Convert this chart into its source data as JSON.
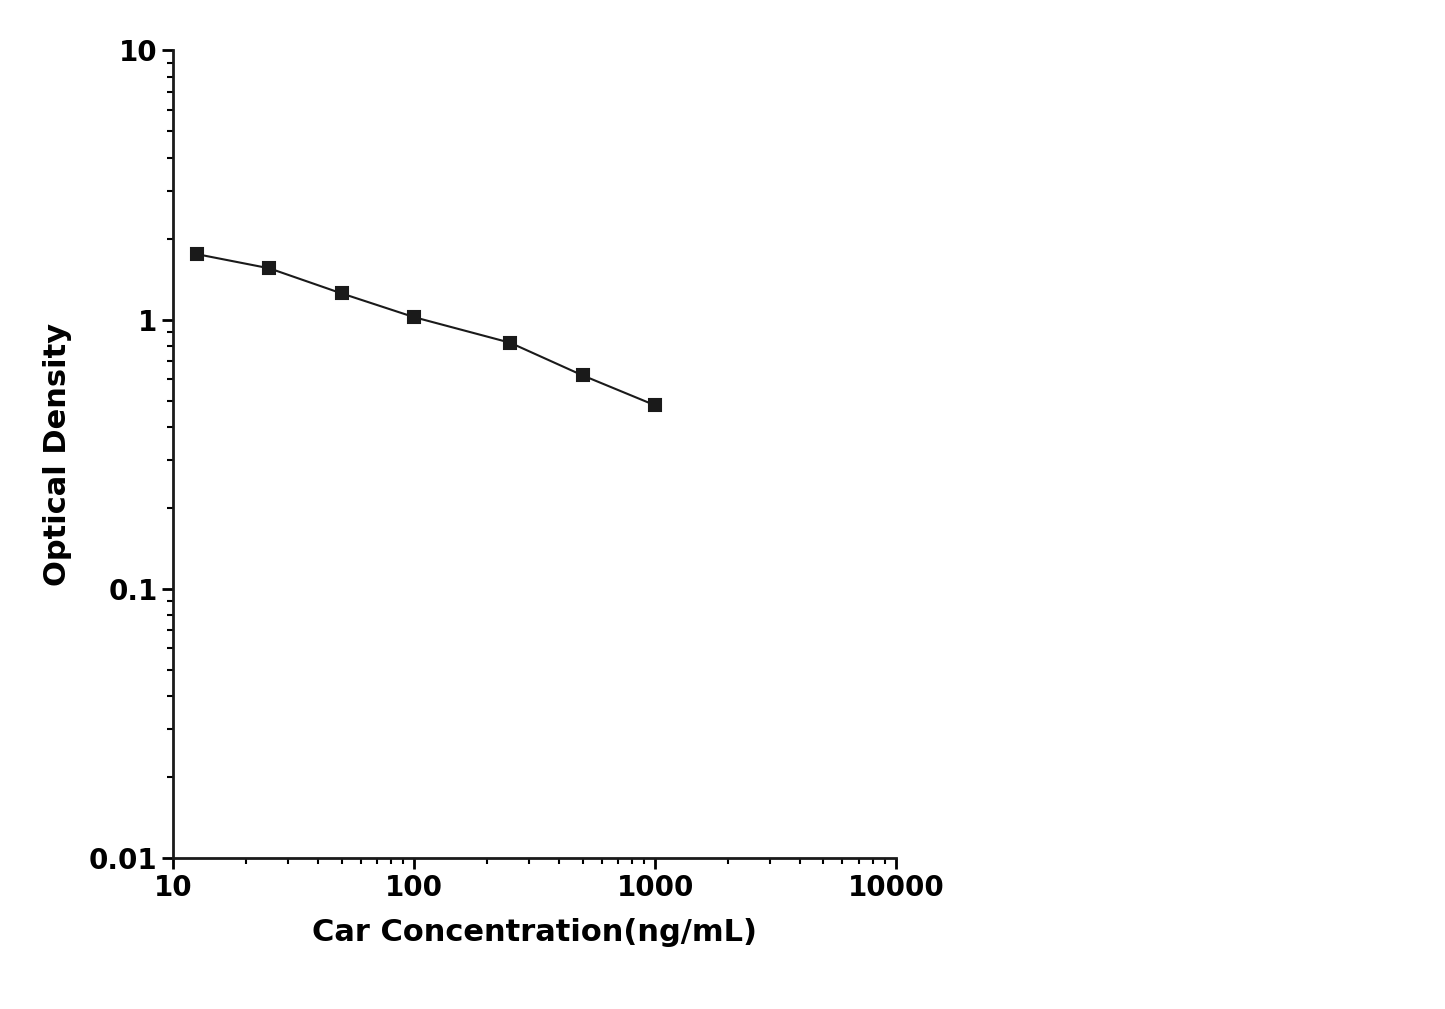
{
  "x": [
    12.5,
    25,
    50,
    100,
    250,
    500,
    1000
  ],
  "y": [
    1.75,
    1.55,
    1.25,
    1.02,
    0.82,
    0.62,
    0.48
  ],
  "xlabel": "Car Concentration(ng/mL)",
  "ylabel": "Optical Density",
  "xlim": [
    10,
    10000
  ],
  "ylim": [
    0.01,
    10
  ],
  "line_color": "#1a1a1a",
  "marker": "s",
  "marker_size": 9,
  "marker_facecolor": "#1a1a1a",
  "marker_edgecolor": "#1a1a1a",
  "line_width": 1.5,
  "background_color": "#ffffff",
  "xlabel_fontsize": 22,
  "ylabel_fontsize": 22,
  "tick_fontsize": 20,
  "axis_linewidth": 2.0
}
